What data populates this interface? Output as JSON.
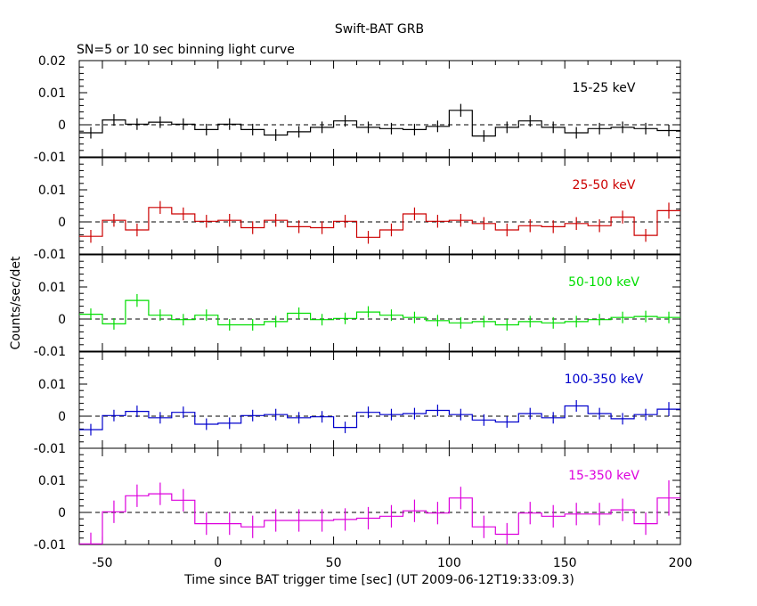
{
  "title": "Swift-BAT GRB",
  "subtitle": "SN=5 or 10 sec binning light curve",
  "ylabel": "Counts/sec/det",
  "xlabel": "Time since BAT trigger time [sec] (UT 2009-06-12T19:33:09.3)",
  "colors": {
    "axis": "#000000",
    "dash": "#000000"
  },
  "chart_data": {
    "type": "line",
    "step": true,
    "xlim": [
      -60,
      200
    ],
    "xticks": [
      -50,
      0,
      50,
      100,
      150,
      200
    ],
    "bin_width": 10,
    "x": [
      -55,
      -45,
      -35,
      -25,
      -15,
      -5,
      5,
      15,
      25,
      35,
      45,
      55,
      65,
      75,
      85,
      95,
      105,
      115,
      125,
      135,
      145,
      155,
      165,
      175,
      185,
      195
    ],
    "panels": [
      {
        "label": "15-25 keV",
        "color": "#000000",
        "ylim": [
          -0.01,
          0.02
        ],
        "ytick_labels": [
          {
            "v": 0.02,
            "t": "0.02"
          },
          {
            "v": 0.01,
            "t": "0.01"
          },
          {
            "v": 0,
            "t": "0"
          },
          {
            "v": -0.01,
            "t": "-0.01"
          }
        ],
        "values": [
          -0.0025,
          0.0015,
          0.0002,
          0.0008,
          0.0002,
          -0.0015,
          0.0002,
          -0.0015,
          -0.0032,
          -0.0022,
          -0.0008,
          0.0012,
          -0.0008,
          -0.0012,
          -0.0015,
          -0.0005,
          0.0045,
          -0.0035,
          -0.0008,
          0.0012,
          -0.0008,
          -0.0025,
          -0.0012,
          -0.0008,
          -0.0012,
          -0.0018
        ],
        "errors": [
          0.0018,
          0.0018,
          0.0018,
          0.0018,
          0.0018,
          0.0018,
          0.0018,
          0.0018,
          0.0018,
          0.0018,
          0.0018,
          0.0018,
          0.0018,
          0.0018,
          0.0018,
          0.0018,
          0.002,
          0.0018,
          0.0018,
          0.0018,
          0.0018,
          0.0018,
          0.0018,
          0.0018,
          0.0018,
          0.0018
        ]
      },
      {
        "label": "25-50 keV",
        "color": "#cc0000",
        "ylim": [
          -0.01,
          0.02
        ],
        "ytick_labels": [
          {
            "v": 0.01,
            "t": "0.01"
          },
          {
            "v": 0,
            "t": "0"
          },
          {
            "v": -0.01,
            "t": "-0.01"
          }
        ],
        "values": [
          -0.0045,
          0.0005,
          -0.0025,
          0.0045,
          0.0025,
          0.0002,
          0.0005,
          -0.0018,
          0.0005,
          -0.0015,
          -0.0018,
          0.0002,
          -0.0048,
          -0.0025,
          0.0025,
          0.0002,
          0.0005,
          -0.0005,
          -0.0025,
          -0.0012,
          -0.0015,
          -0.0005,
          -0.0012,
          0.0015,
          -0.0042,
          0.0035
        ],
        "errors": [
          0.002,
          0.002,
          0.002,
          0.002,
          0.002,
          0.002,
          0.002,
          0.002,
          0.002,
          0.002,
          0.002,
          0.002,
          0.002,
          0.002,
          0.002,
          0.002,
          0.002,
          0.002,
          0.002,
          0.002,
          0.002,
          0.002,
          0.002,
          0.002,
          0.002,
          0.0025
        ]
      },
      {
        "label": "50-100 keV",
        "color": "#00dd00",
        "ylim": [
          -0.01,
          0.02
        ],
        "ytick_labels": [
          {
            "v": 0.01,
            "t": "0.01"
          },
          {
            "v": 0,
            "t": "0"
          },
          {
            "v": -0.01,
            "t": "-0.01"
          }
        ],
        "values": [
          0.0015,
          -0.0015,
          0.0058,
          0.0012,
          -0.0002,
          0.0012,
          -0.0018,
          -0.0018,
          -0.0008,
          0.0018,
          -0.0002,
          0.0002,
          0.0022,
          0.0012,
          0.0005,
          -0.0005,
          -0.0012,
          -0.0008,
          -0.0018,
          -0.0008,
          -0.0012,
          -0.0008,
          -0.0002,
          0.0005,
          0.0008,
          0.0005
        ],
        "errors": [
          0.0018,
          0.0018,
          0.002,
          0.0018,
          0.0018,
          0.0018,
          0.0018,
          0.0018,
          0.0018,
          0.0018,
          0.0018,
          0.0018,
          0.0018,
          0.0018,
          0.0018,
          0.0018,
          0.0018,
          0.0018,
          0.0018,
          0.0018,
          0.0018,
          0.0018,
          0.0018,
          0.0018,
          0.0018,
          0.0018
        ]
      },
      {
        "label": "100-350 keV",
        "color": "#0000cc",
        "ylim": [
          -0.01,
          0.02
        ],
        "ytick_labels": [
          {
            "v": 0.01,
            "t": "0.01"
          },
          {
            "v": 0,
            "t": "0"
          },
          {
            "v": -0.01,
            "t": "-0.01"
          }
        ],
        "values": [
          -0.0042,
          0.0002,
          0.0015,
          -0.0005,
          0.0012,
          -0.0025,
          -0.0022,
          0.0002,
          0.0005,
          -0.0005,
          -0.0002,
          -0.0035,
          0.0012,
          0.0005,
          0.0008,
          0.0018,
          0.0005,
          -0.0012,
          -0.0018,
          0.0008,
          -0.0005,
          0.0032,
          0.0008,
          -0.0008,
          0.0005,
          0.0022
        ],
        "errors": [
          0.0018,
          0.0018,
          0.0018,
          0.0018,
          0.0018,
          0.0018,
          0.0018,
          0.0018,
          0.0018,
          0.0018,
          0.0018,
          0.0018,
          0.0018,
          0.0018,
          0.0018,
          0.0018,
          0.0018,
          0.0018,
          0.0018,
          0.0018,
          0.0018,
          0.0018,
          0.0018,
          0.0018,
          0.0018,
          0.0022
        ]
      },
      {
        "label": "15-350 keV",
        "color": "#dd00dd",
        "ylim": [
          -0.01,
          0.02
        ],
        "ytick_labels": [
          {
            "v": 0.01,
            "t": "0.01"
          },
          {
            "v": 0,
            "t": "0"
          },
          {
            "v": -0.01,
            "t": "-0.01"
          }
        ],
        "values": [
          -0.0098,
          0.0002,
          0.0052,
          0.0058,
          0.0038,
          -0.0035,
          -0.0035,
          -0.0045,
          -0.0025,
          -0.0025,
          -0.0025,
          -0.0022,
          -0.0018,
          -0.0012,
          0.0005,
          -0.0002,
          0.0045,
          -0.0045,
          -0.0068,
          -0.0002,
          -0.0012,
          -0.0005,
          -0.0005,
          0.0008,
          -0.0035,
          0.0045
        ],
        "errors": [
          0.0035,
          0.0035,
          0.0035,
          0.0035,
          0.0035,
          0.0035,
          0.0035,
          0.0035,
          0.0035,
          0.0035,
          0.0035,
          0.0035,
          0.0035,
          0.0035,
          0.0035,
          0.0035,
          0.0035,
          0.0035,
          0.0035,
          0.0035,
          0.0035,
          0.0035,
          0.0035,
          0.0035,
          0.0035,
          0.0055
        ]
      }
    ]
  }
}
